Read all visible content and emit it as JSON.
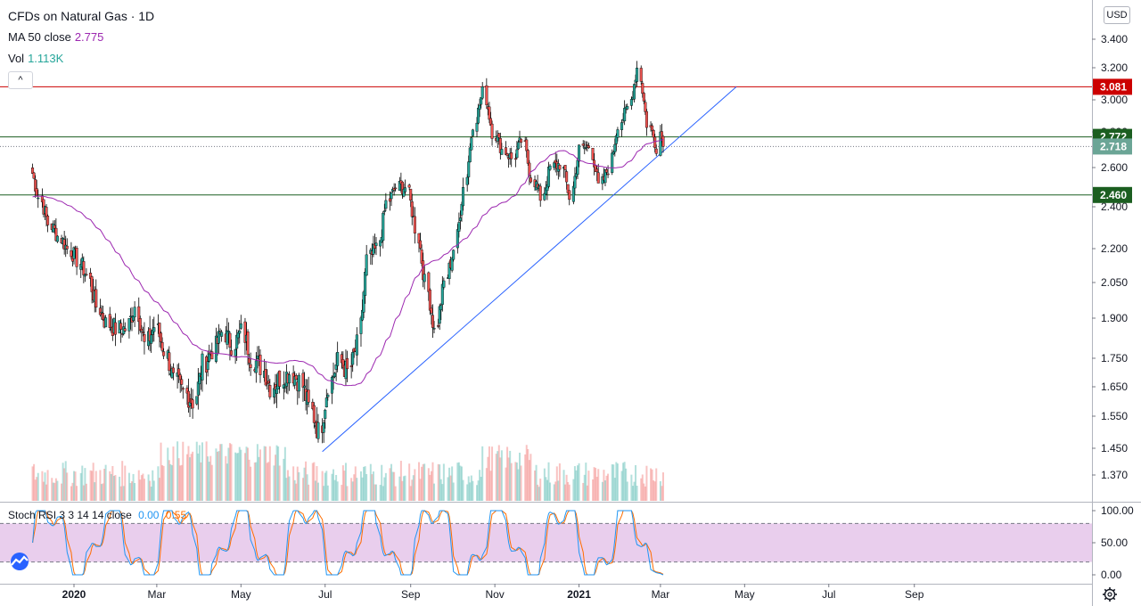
{
  "legend": {
    "title": "CFDs on Natural Gas · 1D",
    "ma_label": "MA 50 close",
    "ma_value": "2.775",
    "vol_label": "Vol",
    "vol_value": "1.113K"
  },
  "currency": "USD",
  "collapse_glyph": "^",
  "stoch": {
    "label": "Stoch RSI 3 3 14 14 close",
    "k_value": "0.00",
    "d_value": "0.55",
    "axis_ticks": [
      "100.00",
      "50.00",
      "0.00"
    ]
  },
  "colors": {
    "up": "#26a69a",
    "down": "#ef5350",
    "ma": "#9c27b0",
    "resistance": "#cc0000",
    "support": "#1b5e20",
    "trendline": "#2962ff",
    "k_line": "#2196f3",
    "d_line": "#ff6d00",
    "stoch_band": "#e1bee7"
  },
  "chart_data": [
    {
      "type": "candlestick",
      "title": "CFDs on Natural Gas · 1D",
      "y_ticks": [
        "3.400",
        "3.200",
        "3.000",
        "2.800",
        "2.600",
        "2.400",
        "2.200",
        "2.050",
        "1.900",
        "1.750",
        "1.650",
        "1.550",
        "1.450",
        "1.370"
      ],
      "x_ticks": [
        "2020",
        "Mar",
        "May",
        "Jul",
        "Sep",
        "Nov",
        "2021",
        "Mar",
        "May",
        "Jul",
        "Sep"
      ],
      "horizontal_levels": [
        {
          "value": 3.081,
          "label": "3.081",
          "color": "resistance"
        },
        {
          "value": 2.772,
          "label": "2.772",
          "color": "support"
        },
        {
          "value": 2.46,
          "label": "2.460",
          "color": "support"
        }
      ],
      "last_price": {
        "value": 2.718,
        "label": "2.718"
      },
      "trendline": {
        "from": [
          "2020-06-29",
          1.44
        ],
        "to": [
          "2021-04-25",
          3.081
        ]
      },
      "ma50_last": 2.775,
      "closes_anchor": [
        [
          "2019-12-02",
          2.6
        ],
        [
          "2019-12-09",
          2.45
        ],
        [
          "2019-12-16",
          2.32
        ],
        [
          "2019-12-23",
          2.26
        ],
        [
          "2019-12-30",
          2.2
        ],
        [
          "2020-01-06",
          2.15
        ],
        [
          "2020-01-13",
          2.08
        ],
        [
          "2020-01-20",
          1.95
        ],
        [
          "2020-01-27",
          1.88
        ],
        [
          "2020-02-03",
          1.86
        ],
        [
          "2020-02-10",
          1.86
        ],
        [
          "2020-02-17",
          1.95
        ],
        [
          "2020-02-24",
          1.8
        ],
        [
          "2020-03-02",
          1.87
        ],
        [
          "2020-03-09",
          1.78
        ],
        [
          "2020-03-16",
          1.67
        ],
        [
          "2020-03-23",
          1.63
        ],
        [
          "2020-03-30",
          1.6
        ],
        [
          "2020-04-06",
          1.73
        ],
        [
          "2020-04-13",
          1.78
        ],
        [
          "2020-04-20",
          1.85
        ],
        [
          "2020-04-27",
          1.8
        ],
        [
          "2020-05-04",
          1.85
        ],
        [
          "2020-05-11",
          1.75
        ],
        [
          "2020-05-18",
          1.72
        ],
        [
          "2020-05-25",
          1.65
        ],
        [
          "2020-06-01",
          1.68
        ],
        [
          "2020-06-08",
          1.7
        ],
        [
          "2020-06-15",
          1.67
        ],
        [
          "2020-06-22",
          1.58
        ],
        [
          "2020-06-29",
          1.5
        ],
        [
          "2020-07-06",
          1.66
        ],
        [
          "2020-07-13",
          1.74
        ],
        [
          "2020-07-20",
          1.7
        ],
        [
          "2020-07-27",
          1.8
        ],
        [
          "2020-08-03",
          2.15
        ],
        [
          "2020-08-10",
          2.2
        ],
        [
          "2020-08-17",
          2.42
        ],
        [
          "2020-08-24",
          2.5
        ],
        [
          "2020-08-31",
          2.5
        ],
        [
          "2020-09-07",
          2.3
        ],
        [
          "2020-09-14",
          2.05
        ],
        [
          "2020-09-21",
          1.85
        ],
        [
          "2020-09-28",
          2.05
        ],
        [
          "2020-10-05",
          2.2
        ],
        [
          "2020-10-12",
          2.5
        ],
        [
          "2020-10-19",
          2.85
        ],
        [
          "2020-10-26",
          3.05
        ],
        [
          "2020-11-02",
          2.8
        ],
        [
          "2020-11-09",
          2.7
        ],
        [
          "2020-11-16",
          2.65
        ],
        [
          "2020-11-23",
          2.75
        ],
        [
          "2020-11-30",
          2.55
        ],
        [
          "2020-12-07",
          2.45
        ],
        [
          "2020-12-14",
          2.6
        ],
        [
          "2020-12-21",
          2.62
        ],
        [
          "2020-12-28",
          2.45
        ],
        [
          "2021-01-04",
          2.7
        ],
        [
          "2021-01-11",
          2.72
        ],
        [
          "2021-01-18",
          2.5
        ],
        [
          "2021-01-25",
          2.6
        ],
        [
          "2021-02-01",
          2.85
        ],
        [
          "2021-02-08",
          2.95
        ],
        [
          "2021-02-15",
          3.2
        ],
        [
          "2021-02-22",
          2.85
        ],
        [
          "2021-03-01",
          2.718
        ]
      ],
      "volume_label": "Vol"
    },
    {
      "type": "line",
      "title": "Stoch RSI 3 3 14 14 close",
      "ylim": [
        0,
        100
      ],
      "bands": [
        20,
        80
      ],
      "series": [
        {
          "name": "K",
          "last": 0.0
        },
        {
          "name": "D",
          "last": 0.55
        }
      ]
    }
  ]
}
